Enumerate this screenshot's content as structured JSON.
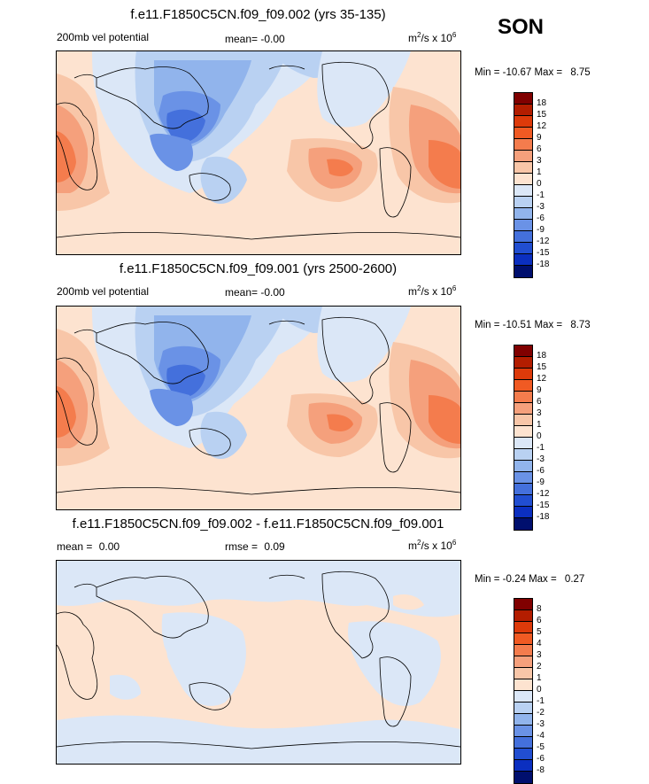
{
  "season": "SON",
  "panels": [
    {
      "title": "f.e11.F1850C5CN.f09_f09.002 (yrs 35-135)",
      "left_label": "200mb vel potential",
      "stat_label": "mean=",
      "stat_value": "-0.00",
      "extra_label": "",
      "extra_value": "",
      "units_prefix": "m",
      "units_exp1": "2",
      "units_mid": "/s x 10",
      "units_exp2": "6",
      "min_label": "Min =",
      "min_value": "-10.67",
      "max_label": "Max =",
      "max_value": "8.75",
      "cbar_ticks": [
        "18",
        "15",
        "12",
        "9",
        "6",
        "3",
        "1",
        "0",
        "-1",
        "-3",
        "-6",
        "-9",
        "-12",
        "-15",
        "-18"
      ]
    },
    {
      "title": "f.e11.F1850C5CN.f09_f09.001 (yrs 2500-2600)",
      "left_label": "200mb vel potential",
      "stat_label": "mean=",
      "stat_value": "-0.00",
      "extra_label": "",
      "extra_value": "",
      "units_prefix": "m",
      "units_exp1": "2",
      "units_mid": "/s x 10",
      "units_exp2": "6",
      "min_label": "Min =",
      "min_value": "-10.51",
      "max_label": "Max =",
      "max_value": "8.73",
      "cbar_ticks": [
        "18",
        "15",
        "12",
        "9",
        "6",
        "3",
        "1",
        "0",
        "-1",
        "-3",
        "-6",
        "-9",
        "-12",
        "-15",
        "-18"
      ]
    },
    {
      "title": "f.e11.F1850C5CN.f09_f09.002 - f.e11.F1850C5CN.f09_f09.001",
      "left_label": "mean =",
      "left_value": "0.00",
      "stat_label": "rmse =",
      "stat_value": "0.09",
      "units_prefix": "m",
      "units_exp1": "2",
      "units_mid": "/s x 10",
      "units_exp2": "6",
      "min_label": "Min =",
      "min_value": "-0.24",
      "max_label": "Max =",
      "max_value": "0.27",
      "cbar_ticks": [
        "8",
        "6",
        "5",
        "4",
        "3",
        "2",
        "1",
        "0",
        "-1",
        "-2",
        "-3",
        "-4",
        "-5",
        "-6",
        "-8"
      ]
    }
  ],
  "colors": {
    "scale": [
      "#800000",
      "#b31d00",
      "#dd3a0a",
      "#f05a23",
      "#f47c4d",
      "#f5a07c",
      "#f8c6a8",
      "#fde3d0",
      "#dbe7f7",
      "#b9d1f2",
      "#91b4ec",
      "#6a92e6",
      "#4470dc",
      "#214ed1",
      "#0b2fc0",
      "#001a9a",
      "#000f6e"
    ]
  }
}
